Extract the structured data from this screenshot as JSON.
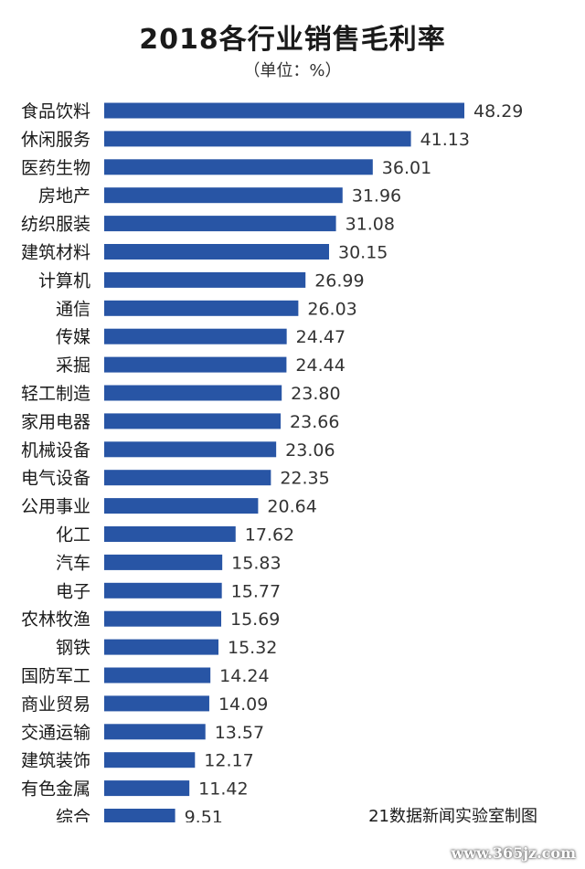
{
  "title": "2018各行业销售毛利率",
  "unit": "（单位：%）",
  "source": "21数据新闻实验室制图",
  "watermark": "www.365jz.com",
  "colors": {
    "bar": "#2855a5"
  },
  "chart_data": {
    "type": "bar",
    "orientation": "horizontal",
    "title": "2018各行业销售毛利率",
    "xlabel": "",
    "ylabel": "",
    "xlim": [
      0,
      50
    ],
    "grid": false,
    "categories": [
      "食品饮料",
      "休闲服务",
      "医药生物",
      "房地产",
      "纺织服装",
      "建筑材料",
      "计算机",
      "通信",
      "传媒",
      "采掘",
      "轻工制造",
      "家用电器",
      "机械设备",
      "电气设备",
      "公用事业",
      "化工",
      "汽车",
      "电子",
      "农林牧渔",
      "钢铁",
      "国防军工",
      "商业贸易",
      "交通运输",
      "建筑装饰",
      "有色金属",
      "综合"
    ],
    "values": [
      48.29,
      41.13,
      36.01,
      31.96,
      31.08,
      30.15,
      26.99,
      26.03,
      24.47,
      24.44,
      23.8,
      23.66,
      23.06,
      22.35,
      20.64,
      17.62,
      15.83,
      15.77,
      15.69,
      15.32,
      14.24,
      14.09,
      13.57,
      12.17,
      11.42,
      9.51
    ],
    "value_labels": [
      "48.29",
      "41.13",
      "36.01",
      "31.96",
      "31.08",
      "30.15",
      "26.99",
      "26.03",
      "24.47",
      "24.44",
      "23.80",
      "23.66",
      "23.06",
      "22.35",
      "20.64",
      "17.62",
      "15.83",
      "15.77",
      "15.69",
      "15.32",
      "14.24",
      "14.09",
      "13.57",
      "12.17",
      "11.42",
      "9.51"
    ]
  }
}
